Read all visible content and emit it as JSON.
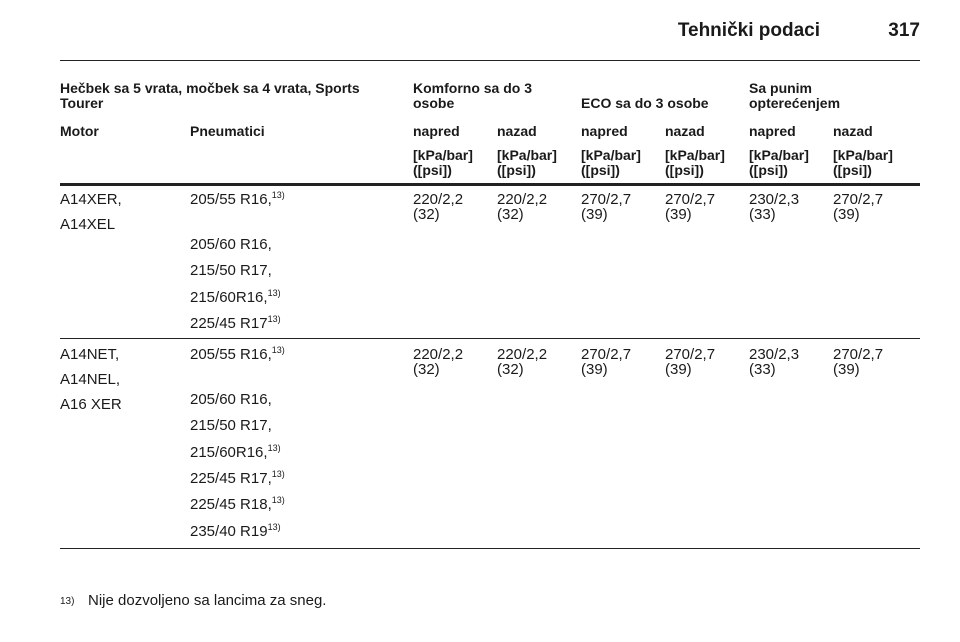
{
  "header": {
    "title": "Tehnički podaci",
    "page": "317"
  },
  "table": {
    "group_headers": [
      "Hečbek sa 5 vrata, močbek sa 4 vrata, Sports Tourer",
      "Komforno sa do 3 osobe",
      "ECO sa do 3 osobe",
      "Sa punim opterećenjem"
    ],
    "columns": [
      "Motor",
      "Pneumatici",
      "napred",
      "nazad",
      "napred",
      "nazad",
      "napred",
      "nazad"
    ],
    "units": [
      [
        "[kPa/bar]",
        "([psi])"
      ],
      [
        "[kPa/bar]",
        "([psi])"
      ],
      [
        "[kPa/bar]",
        "([psi])"
      ],
      [
        "[kPa/bar]",
        "([psi])"
      ],
      [
        "[kPa/bar]",
        "([psi])"
      ],
      [
        "[kPa/bar]",
        "([psi])"
      ]
    ],
    "rows": [
      {
        "motors": [
          "A14XER,",
          "A14XEL"
        ],
        "tires": [
          {
            "text": "205/55 R16,",
            "note": "13)"
          },
          {
            "text": "205/60 R16,"
          },
          {
            "text": "215/50 R17,"
          },
          {
            "text": "215/60R16,",
            "note": "13)"
          },
          {
            "text": "225/45 R17",
            "note": "13)"
          }
        ],
        "pressures": [
          [
            "220/2,2",
            "(32)"
          ],
          [
            "220/2,2",
            "(32)"
          ],
          [
            "270/2,7",
            "(39)"
          ],
          [
            "270/2,7",
            "(39)"
          ],
          [
            "230/2,3",
            "(33)"
          ],
          [
            "270/2,7",
            "(39)"
          ]
        ]
      },
      {
        "motors": [
          "A14NET,",
          "A14NEL,",
          "A16 XER"
        ],
        "tires": [
          {
            "text": "205/55 R16,",
            "note": "13)"
          },
          {
            "text": "205/60 R16,"
          },
          {
            "text": "215/50 R17,"
          },
          {
            "text": "215/60R16,",
            "note": "13)"
          },
          {
            "text": "225/45 R17,",
            "note": "13)"
          },
          {
            "text": "225/45 R18,",
            "note": "13)"
          },
          {
            "text": "235/40 R19",
            "note": "13)"
          }
        ],
        "pressures": [
          [
            "220/2,2",
            "(32)"
          ],
          [
            "220/2,2",
            "(32)"
          ],
          [
            "270/2,7",
            "(39)"
          ],
          [
            "270/2,7",
            "(39)"
          ],
          [
            "230/2,3",
            "(33)"
          ],
          [
            "270/2,7",
            "(39)"
          ]
        ]
      }
    ]
  },
  "footnote": {
    "mark": "13)",
    "text": "Nije dozvoljeno sa lancima za sneg."
  }
}
